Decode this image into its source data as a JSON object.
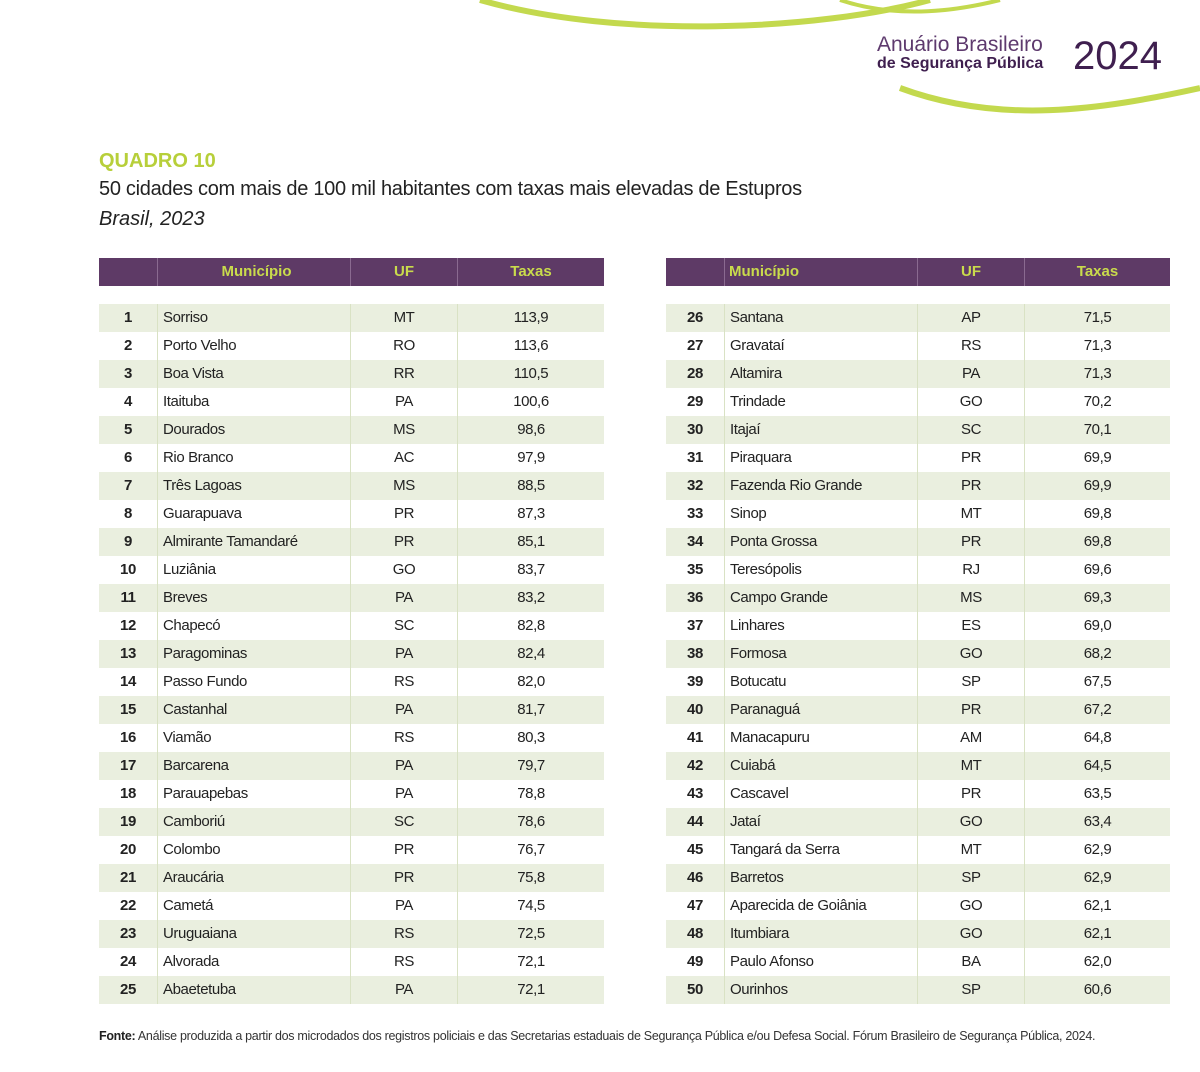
{
  "header": {
    "brand_line1": "Anuário Brasileiro",
    "brand_line2": "de Segurança Pública",
    "year": "2024"
  },
  "quadro": {
    "label": "QUADRO 10",
    "title": "50 cidades com mais de 100 mil habitantes com taxas mais elevadas de Estupros",
    "subtitle": "Brasil, 2023"
  },
  "columns": {
    "rank": "",
    "municipio": "Município",
    "uf": "UF",
    "taxas": "Taxas"
  },
  "rows": [
    [
      "1",
      "Sorriso",
      "MT",
      "113,9"
    ],
    [
      "2",
      "Porto Velho",
      "RO",
      "113,6"
    ],
    [
      "3",
      "Boa Vista",
      "RR",
      "110,5"
    ],
    [
      "4",
      "Itaituba",
      "PA",
      "100,6"
    ],
    [
      "5",
      "Dourados",
      "MS",
      "98,6"
    ],
    [
      "6",
      "Rio Branco",
      "AC",
      "97,9"
    ],
    [
      "7",
      "Três Lagoas",
      "MS",
      "88,5"
    ],
    [
      "8",
      "Guarapuava",
      "PR",
      "87,3"
    ],
    [
      "9",
      "Almirante Tamandaré",
      "PR",
      "85,1"
    ],
    [
      "10",
      "Luziânia",
      "GO",
      "83,7"
    ],
    [
      "11",
      "Breves",
      "PA",
      "83,2"
    ],
    [
      "12",
      "Chapecó",
      "SC",
      "82,8"
    ],
    [
      "13",
      "Paragominas",
      "PA",
      "82,4"
    ],
    [
      "14",
      "Passo Fundo",
      "RS",
      "82,0"
    ],
    [
      "15",
      "Castanhal",
      "PA",
      "81,7"
    ],
    [
      "16",
      "Viamão",
      "RS",
      "80,3"
    ],
    [
      "17",
      "Barcarena",
      "PA",
      "79,7"
    ],
    [
      "18",
      "Parauapebas",
      "PA",
      "78,8"
    ],
    [
      "19",
      "Camboriú",
      "SC",
      "78,6"
    ],
    [
      "20",
      "Colombo",
      "PR",
      "76,7"
    ],
    [
      "21",
      "Araucária",
      "PR",
      "75,8"
    ],
    [
      "22",
      "Cametá",
      "PA",
      "74,5"
    ],
    [
      "23",
      "Uruguaiana",
      "RS",
      "72,5"
    ],
    [
      "24",
      "Alvorada",
      "RS",
      "72,1"
    ],
    [
      "25",
      "Abaetetuba",
      "PA",
      "72,1"
    ],
    [
      "26",
      "Santana",
      "AP",
      "71,5"
    ],
    [
      "27",
      "Gravataí",
      "RS",
      "71,3"
    ],
    [
      "28",
      "Altamira",
      "PA",
      "71,3"
    ],
    [
      "29",
      "Trindade",
      "GO",
      "70,2"
    ],
    [
      "30",
      "Itajaí",
      "SC",
      "70,1"
    ],
    [
      "31",
      "Piraquara",
      "PR",
      "69,9"
    ],
    [
      "32",
      "Fazenda Rio Grande",
      "PR",
      "69,9"
    ],
    [
      "33",
      "Sinop",
      "MT",
      "69,8"
    ],
    [
      "34",
      "Ponta Grossa",
      "PR",
      "69,8"
    ],
    [
      "35",
      "Teresópolis",
      "RJ",
      "69,6"
    ],
    [
      "36",
      "Campo Grande",
      "MS",
      "69,3"
    ],
    [
      "37",
      "Linhares",
      "ES",
      "69,0"
    ],
    [
      "38",
      "Formosa",
      "GO",
      "68,2"
    ],
    [
      "39",
      "Botucatu",
      "SP",
      "67,5"
    ],
    [
      "40",
      "Paranaguá",
      "PR",
      "67,2"
    ],
    [
      "41",
      "Manacapuru",
      "AM",
      "64,8"
    ],
    [
      "42",
      "Cuiabá",
      "MT",
      "64,5"
    ],
    [
      "43",
      "Cascavel",
      "PR",
      "63,5"
    ],
    [
      "44",
      "Jataí",
      "GO",
      "63,4"
    ],
    [
      "45",
      "Tangará da Serra",
      "MT",
      "62,9"
    ],
    [
      "46",
      "Barretos",
      "SP",
      "62,9"
    ],
    [
      "47",
      "Aparecida de Goiânia",
      "GO",
      "62,1"
    ],
    [
      "48",
      "Itumbiara",
      "GO",
      "62,1"
    ],
    [
      "49",
      "Paulo Afonso",
      "BA",
      "62,0"
    ],
    [
      "50",
      "Ourinhos",
      "SP",
      "60,6"
    ]
  ],
  "footer": {
    "label": "Fonte:",
    "text": "Análise produzida a partir dos microdados dos registros policiais e das Secretarias estaduais de Segurança Pública e/ou Defesa Social. Fórum Brasileiro de Segurança Pública, 2024."
  },
  "colors": {
    "purple": "#5e3a66",
    "lime": "#c9db4c",
    "stripe": "#eaefdf"
  }
}
